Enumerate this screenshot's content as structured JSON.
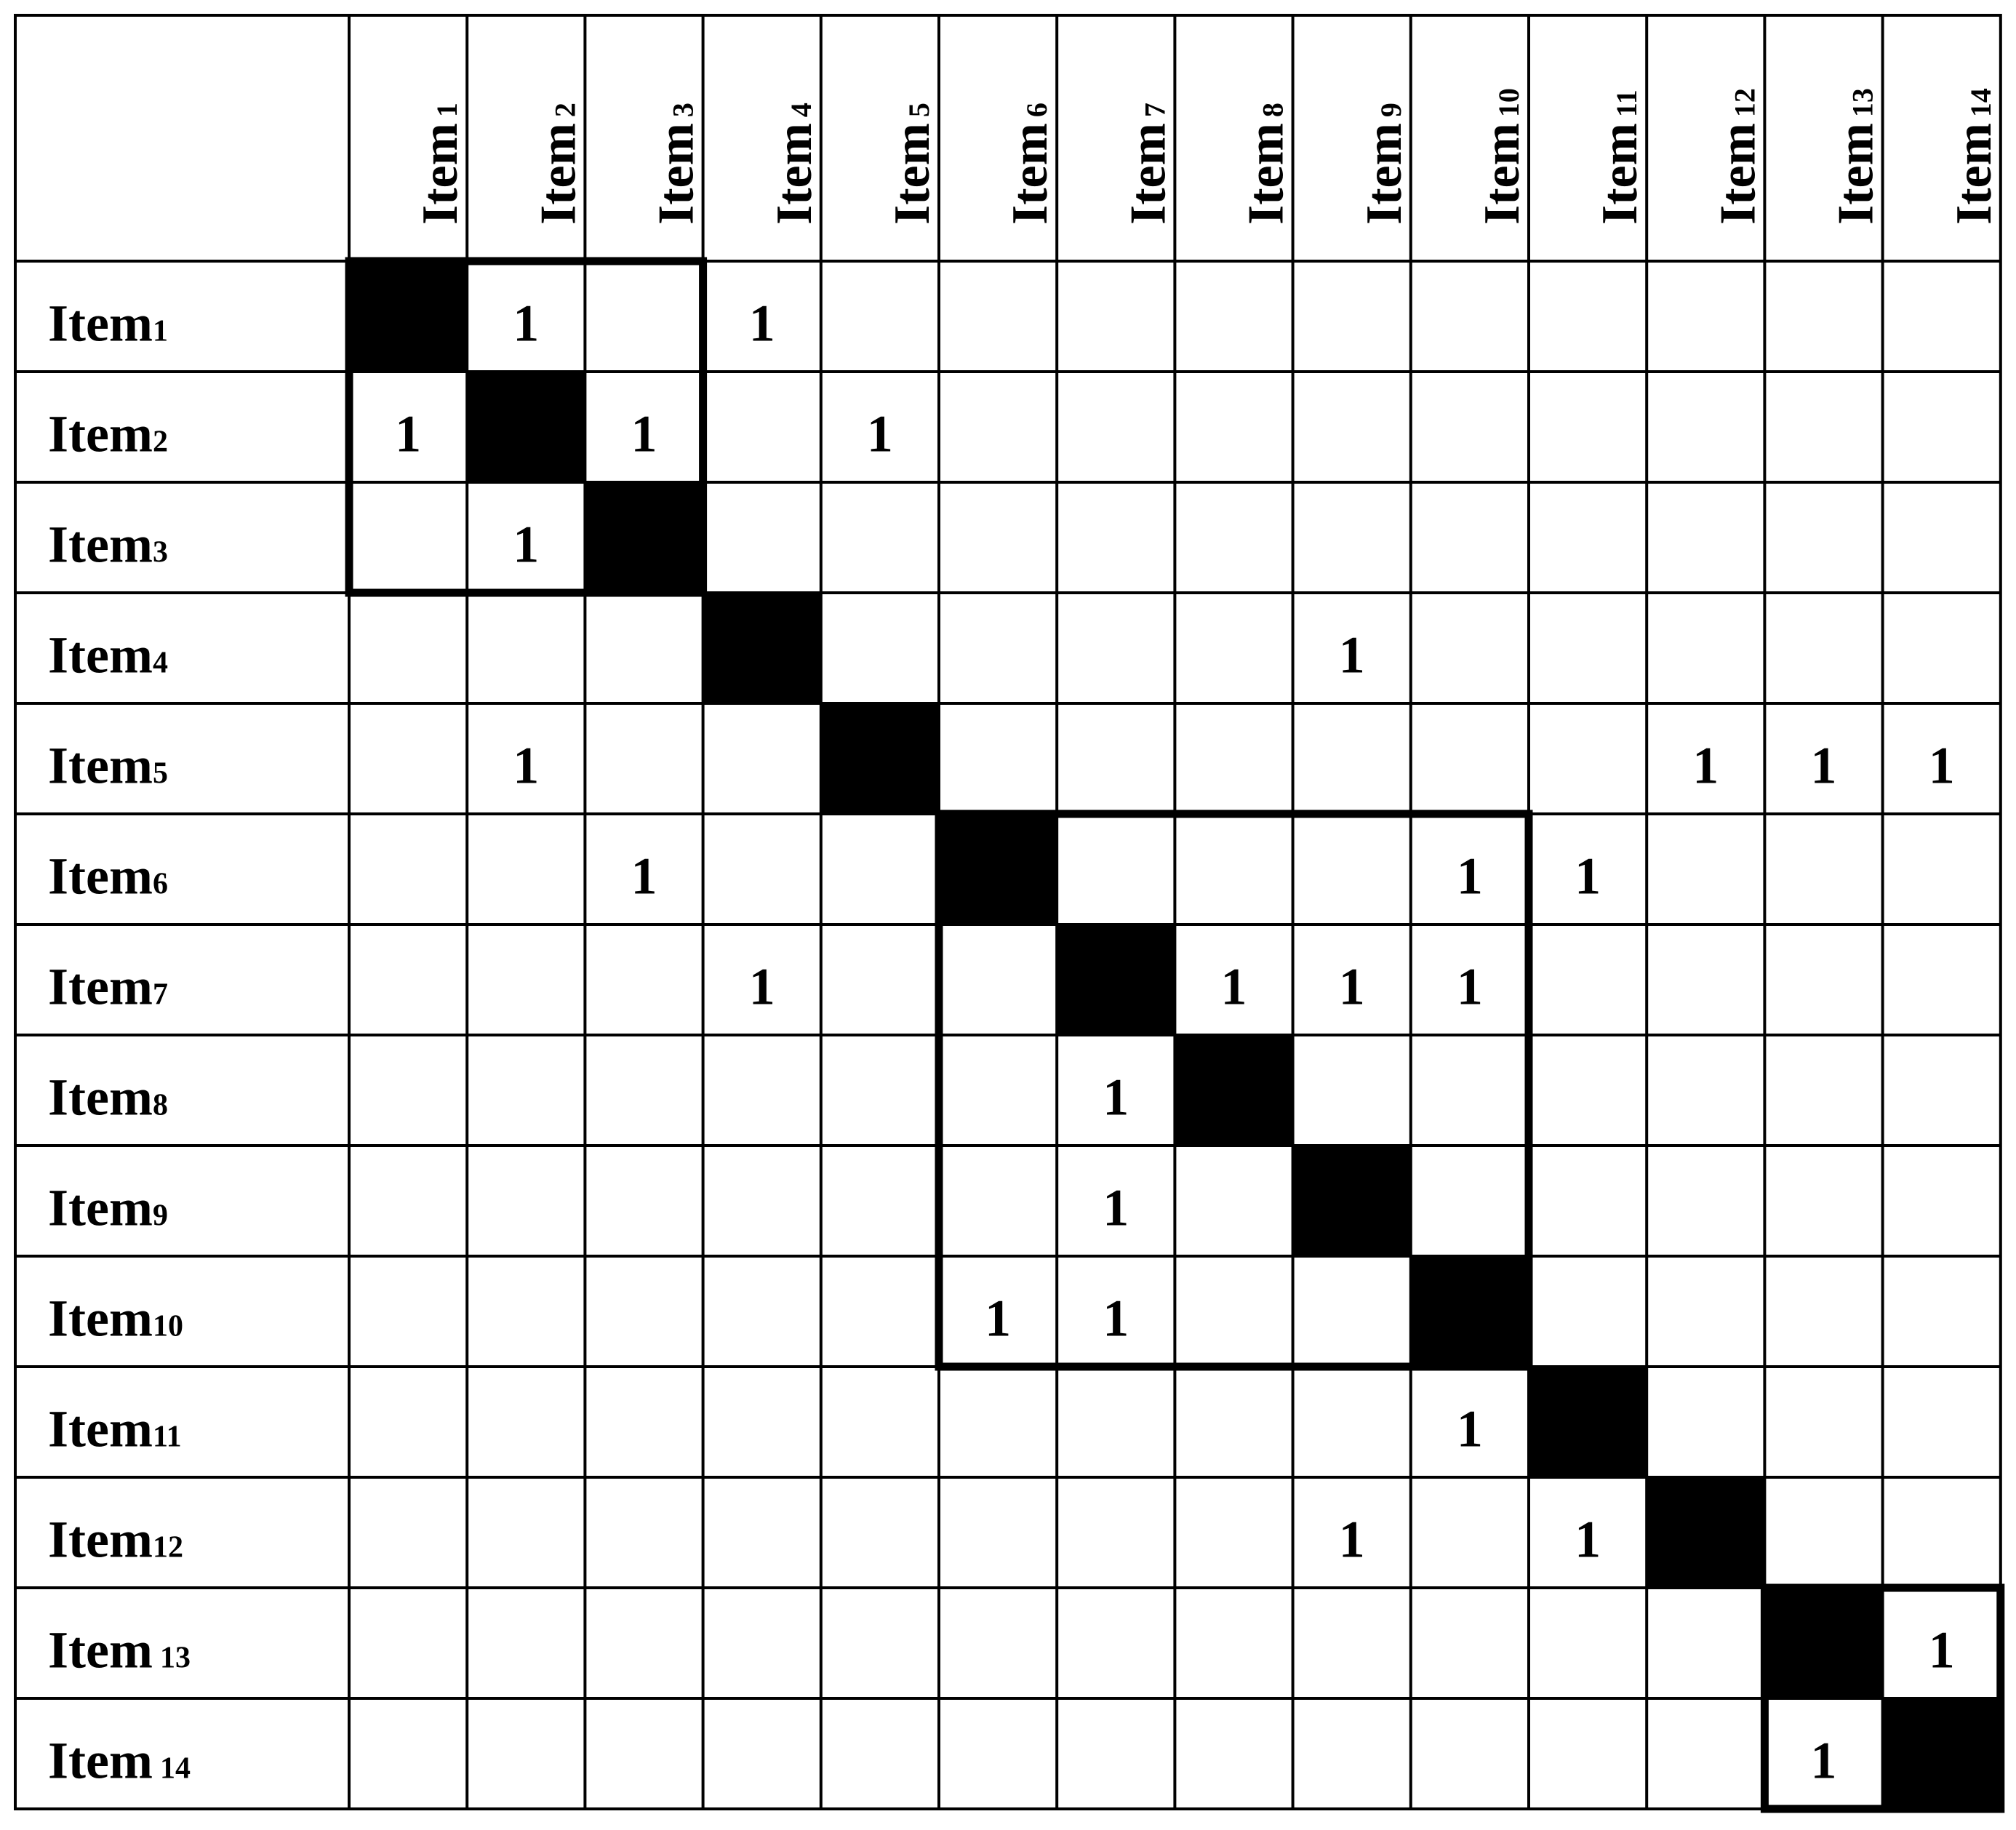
{
  "columns": [
    {
      "text": "Item",
      "sub": "1"
    },
    {
      "text": "Item",
      "sub": "2"
    },
    {
      "text": "Item",
      "sub": "3"
    },
    {
      "text": "Item",
      "sub": "4"
    },
    {
      "text": "Item",
      "sub": "5"
    },
    {
      "text": "Item",
      "sub": "6"
    },
    {
      "text": "Item",
      "sub": "7"
    },
    {
      "text": "Item",
      "sub": "8"
    },
    {
      "text": "Item",
      "sub": "9"
    },
    {
      "text": "Item",
      "sub": "10"
    },
    {
      "text": "Item",
      "sub": "11"
    },
    {
      "text": "Item",
      "sub": "12"
    },
    {
      "text": "Item",
      "sub": "13"
    },
    {
      "text": "Item",
      "sub": "14"
    }
  ],
  "rows": [
    {
      "text": "Item",
      "sub": "1"
    },
    {
      "text": "Item",
      "sub": "2"
    },
    {
      "text": "Item",
      "sub": "3"
    },
    {
      "text": "Item",
      "sub": "4"
    },
    {
      "text": "Item",
      "sub": "5"
    },
    {
      "text": "Item",
      "sub": "6"
    },
    {
      "text": "Item",
      "sub": "7"
    },
    {
      "text": "Item",
      "sub": "8"
    },
    {
      "text": "Item",
      "sub": "9"
    },
    {
      "text": "Item",
      "sub": "10"
    },
    {
      "text": "Item",
      "sub": "11"
    },
    {
      "text": "Item",
      "sub": "12"
    },
    {
      "text": "Item",
      "sub": "13"
    },
    {
      "text": "Item",
      "sub": "14"
    }
  ],
  "matrix": [
    [
      null,
      1,
      null,
      1,
      null,
      null,
      null,
      null,
      null,
      null,
      null,
      null,
      null,
      null
    ],
    [
      1,
      null,
      1,
      null,
      1,
      null,
      null,
      null,
      null,
      null,
      null,
      null,
      null,
      null
    ],
    [
      null,
      1,
      null,
      null,
      null,
      null,
      null,
      null,
      null,
      null,
      null,
      null,
      null,
      null
    ],
    [
      null,
      null,
      null,
      null,
      null,
      null,
      null,
      null,
      1,
      null,
      null,
      null,
      null,
      null
    ],
    [
      null,
      1,
      null,
      null,
      null,
      null,
      null,
      null,
      null,
      null,
      null,
      1,
      1,
      1
    ],
    [
      null,
      null,
      1,
      null,
      null,
      null,
      null,
      null,
      null,
      1,
      1,
      null,
      null,
      null
    ],
    [
      null,
      null,
      null,
      1,
      null,
      null,
      null,
      1,
      1,
      1,
      null,
      null,
      null,
      null
    ],
    [
      null,
      null,
      null,
      null,
      null,
      null,
      1,
      null,
      null,
      null,
      null,
      null,
      null,
      null
    ],
    [
      null,
      null,
      null,
      null,
      null,
      null,
      1,
      null,
      null,
      null,
      null,
      null,
      null,
      null
    ],
    [
      null,
      null,
      null,
      null,
      null,
      1,
      1,
      null,
      null,
      null,
      null,
      null,
      null,
      null
    ],
    [
      null,
      null,
      null,
      null,
      null,
      null,
      null,
      null,
      null,
      1,
      null,
      null,
      null,
      null
    ],
    [
      null,
      null,
      null,
      null,
      null,
      null,
      null,
      null,
      1,
      null,
      1,
      null,
      null,
      null
    ],
    [
      null,
      null,
      null,
      null,
      null,
      null,
      null,
      null,
      null,
      null,
      null,
      null,
      null,
      1
    ],
    [
      null,
      null,
      null,
      null,
      null,
      null,
      null,
      null,
      null,
      null,
      null,
      null,
      1,
      null
    ]
  ]
}
